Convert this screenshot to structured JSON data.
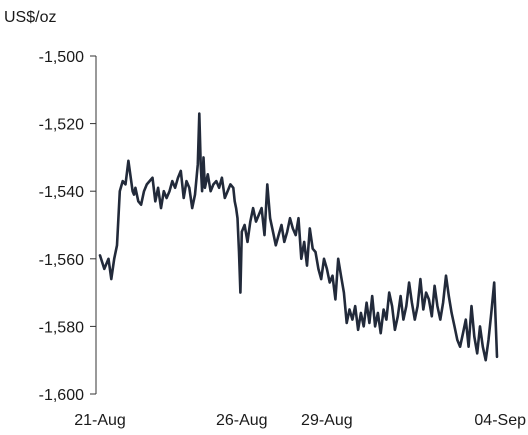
{
  "chart_data": {
    "type": "line",
    "ylabel": "US$/oz",
    "xlabel": "",
    "title": "",
    "ylim": [
      -1600,
      -1500
    ],
    "yticks": [
      -1500,
      -1520,
      -1540,
      -1560,
      -1580,
      -1600
    ],
    "ytick_labels": [
      "-1,500",
      "-1,520",
      "-1,540",
      "-1,560",
      "-1,580",
      "-1,600"
    ],
    "xticks": [
      0,
      5,
      8,
      14
    ],
    "xtick_labels": [
      "21-Aug",
      "26-Aug",
      "29-Aug",
      "04-Sep"
    ],
    "xlim": [
      0,
      14
    ],
    "grid": false,
    "legend": "none",
    "line_color": "#222a3a",
    "series": [
      {
        "x": [
          0,
          0.15,
          0.3,
          0.4,
          0.5,
          0.6,
          0.7,
          0.8,
          0.9,
          1.0,
          1.1,
          1.15,
          1.2,
          1.25,
          1.35,
          1.45,
          1.55,
          1.65,
          1.75,
          1.85,
          1.95,
          2.05,
          2.15,
          2.25,
          2.35,
          2.45,
          2.55,
          2.65,
          2.75,
          2.85,
          2.95,
          3.05,
          3.15,
          3.25,
          3.35,
          3.45,
          3.5,
          3.55,
          3.6,
          3.65,
          3.7,
          3.8,
          3.9,
          4.0,
          4.1,
          4.2,
          4.3,
          4.4,
          4.5,
          4.6,
          4.7,
          4.75,
          4.8,
          4.85,
          4.9,
          4.95,
          5.0,
          5.1,
          5.2,
          5.3,
          5.4,
          5.5,
          5.6,
          5.7,
          5.8,
          5.9,
          6.0,
          6.1,
          6.2,
          6.3,
          6.4,
          6.5,
          6.6,
          6.7,
          6.8,
          6.9,
          7.0,
          7.1,
          7.2,
          7.3,
          7.4,
          7.5,
          7.6,
          7.7,
          7.8,
          7.9,
          8.0,
          8.1,
          8.2,
          8.3,
          8.4,
          8.5,
          8.6,
          8.7,
          8.8,
          8.9,
          9.0,
          9.1,
          9.2,
          9.3,
          9.4,
          9.5,
          9.6,
          9.7,
          9.8,
          9.9,
          10.0,
          10.1,
          10.2,
          10.3,
          10.4,
          10.5,
          10.6,
          10.7,
          10.8,
          10.9,
          11.0,
          11.1,
          11.2,
          11.3,
          11.4,
          11.5,
          11.6,
          11.7,
          11.8,
          11.9,
          12.0,
          12.1,
          12.2,
          12.3,
          12.4,
          12.5,
          12.6,
          12.7,
          12.8,
          12.9,
          13.0,
          13.1,
          13.2,
          13.3,
          13.4,
          13.5,
          13.6,
          13.7,
          13.8,
          13.9,
          14.0
        ],
        "values": [
          -1559,
          -1563,
          -1560,
          -1566,
          -1560,
          -1556,
          -1540,
          -1537,
          -1538,
          -1531,
          -1537,
          -1540,
          -1541,
          -1539,
          -1543,
          -1544,
          -1540,
          -1538,
          -1537,
          -1536,
          -1543,
          -1539,
          -1545,
          -1540,
          -1542,
          -1540,
          -1537,
          -1539,
          -1536,
          -1534,
          -1542,
          -1537,
          -1539,
          -1545,
          -1541,
          -1532,
          -1517,
          -1532,
          -1540,
          -1530,
          -1539,
          -1535,
          -1540,
          -1538,
          -1537,
          -1539,
          -1536,
          -1542,
          -1540,
          -1538,
          -1539,
          -1543,
          -1545,
          -1548,
          -1558,
          -1570,
          -1552,
          -1550,
          -1555,
          -1549,
          -1545,
          -1549,
          -1547,
          -1545,
          -1553,
          -1538,
          -1548,
          -1552,
          -1556,
          -1553,
          -1550,
          -1555,
          -1552,
          -1548,
          -1551,
          -1553,
          -1548,
          -1560,
          -1555,
          -1562,
          -1551,
          -1557,
          -1558,
          -1563,
          -1566,
          -1560,
          -1563,
          -1567,
          -1565,
          -1572,
          -1560,
          -1565,
          -1570,
          -1579,
          -1575,
          -1578,
          -1574,
          -1581,
          -1576,
          -1580,
          -1573,
          -1579,
          -1571,
          -1580,
          -1576,
          -1582,
          -1575,
          -1578,
          -1570,
          -1574,
          -1581,
          -1577,
          -1571,
          -1578,
          -1574,
          -1567,
          -1573,
          -1578,
          -1574,
          -1566,
          -1575,
          -1570,
          -1572,
          -1577,
          -1568,
          -1574,
          -1578,
          -1573,
          -1565,
          -1571,
          -1576,
          -1580,
          -1584,
          -1586,
          -1582,
          -1578,
          -1586,
          -1574,
          -1583,
          -1588,
          -1580,
          -1586,
          -1590,
          -1584,
          -1576,
          -1567,
          -1589
        ],
        "name": ""
      }
    ]
  }
}
